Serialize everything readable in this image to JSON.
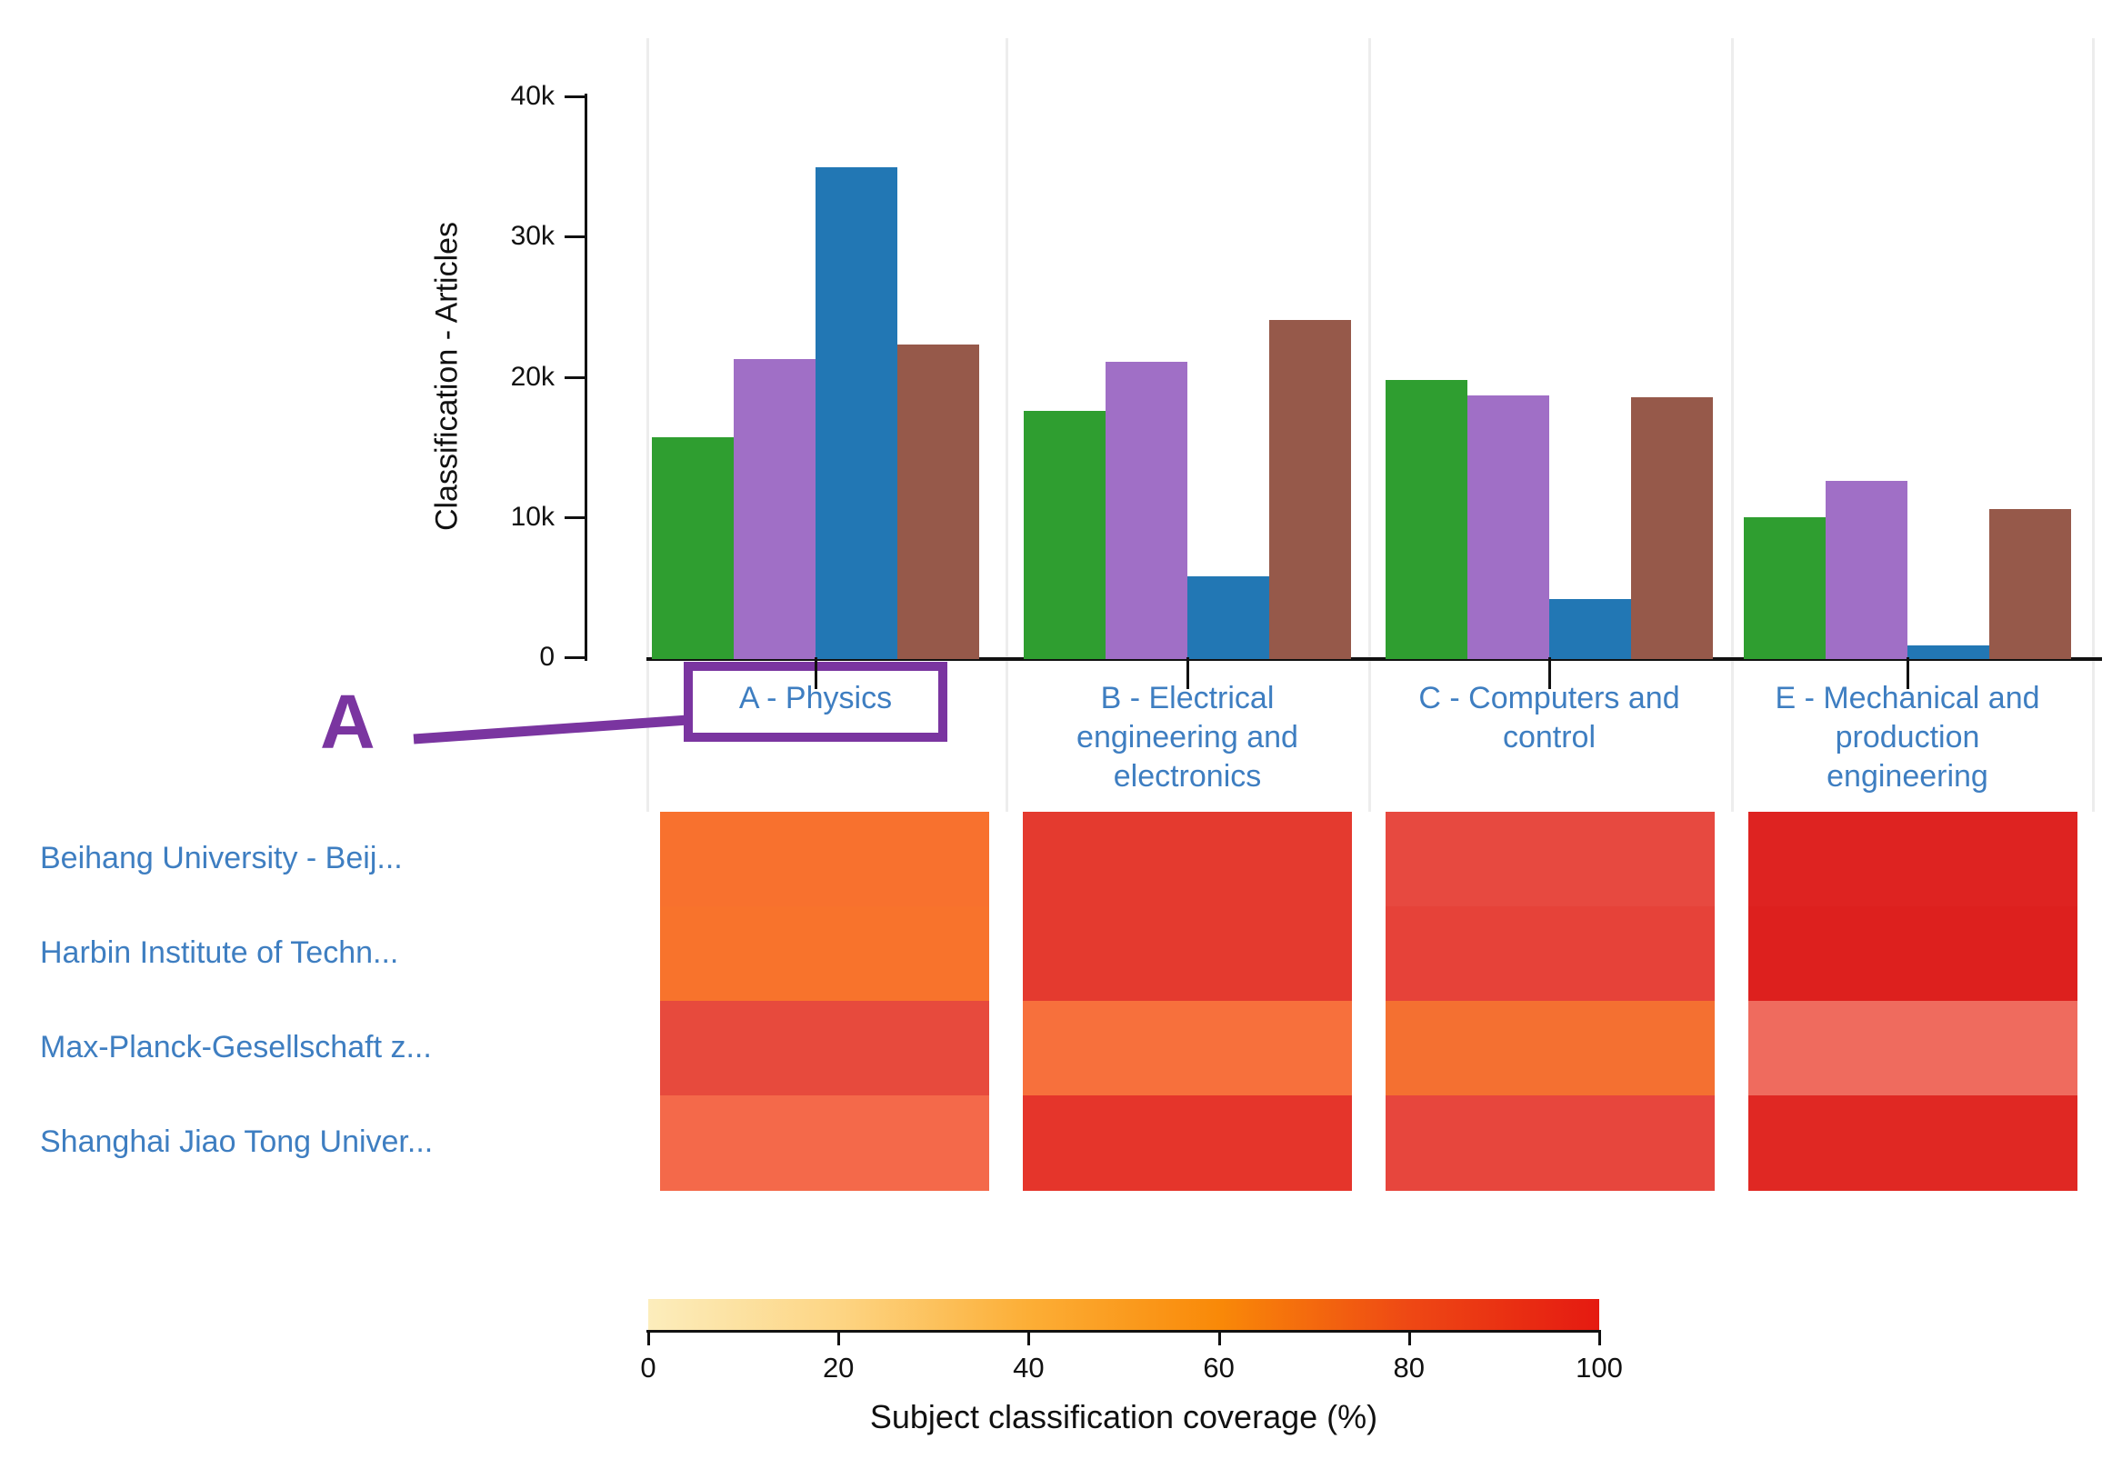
{
  "annotation": {
    "label": "A"
  },
  "chart_data": [
    {
      "type": "bar",
      "title": "",
      "xlabel": "",
      "ylabel": "Classification - Articles",
      "ylim": [
        0,
        40000
      ],
      "grid": "vertical-category-separators",
      "legend": "none",
      "y_tick_labels": [
        "0",
        "10k",
        "20k",
        "30k",
        "40k"
      ],
      "y_tick_values": [
        0,
        10000,
        20000,
        30000,
        40000
      ],
      "categories": [
        "A - Physics",
        "B - Electrical engineering and electronics",
        "C - Computers and control",
        "E - Mechanical and production engineering"
      ],
      "category_lines": [
        [
          "A - Physics"
        ],
        [
          "B - Electrical",
          "engineering and",
          "electronics"
        ],
        [
          "C - Computers and",
          "control"
        ],
        [
          "E - Mechanical and",
          "production",
          "engineering"
        ]
      ],
      "series": [
        {
          "name": "green",
          "color": "#2f9e30",
          "values": [
            15800,
            17700,
            19900,
            10100
          ]
        },
        {
          "name": "purple",
          "color": "#a06fc6",
          "values": [
            21400,
            21200,
            18800,
            12700
          ]
        },
        {
          "name": "blue",
          "color": "#2277b4",
          "values": [
            35100,
            5900,
            4300,
            1000
          ]
        },
        {
          "name": "brown",
          "color": "#96594a",
          "values": [
            22400,
            24200,
            18700,
            10700
          ]
        }
      ],
      "highlighted_category": "A - Physics",
      "annotation_label": "A",
      "highlight_color": "#7a35a0"
    },
    {
      "type": "heatmap",
      "rows": [
        "Beihang University - Beij...",
        "Harbin Institute of Techn...",
        "Max-Planck-Gesellschaft z...",
        "Shanghai Jiao Tong Univer..."
      ],
      "columns": [
        "A - Physics",
        "B - Electrical engineering and electronics",
        "C - Computers and control",
        "E - Mechanical and production engineering"
      ],
      "values_pct": [
        [
          70,
          88,
          85,
          96
        ],
        [
          70,
          88,
          86,
          96
        ],
        [
          83,
          70,
          70,
          76
        ],
        [
          76,
          89,
          85,
          94
        ]
      ],
      "cell_colors": [
        [
          "#f8712e",
          "#e43a2f",
          "#e74940",
          "#de2321"
        ],
        [
          "#f8732c",
          "#e43a2f",
          "#e64239",
          "#dd201e"
        ],
        [
          "#e74a3d",
          "#f7703c",
          "#f47031",
          "#ef6b5e"
        ],
        [
          "#f4694a",
          "#e5352b",
          "#e7463d",
          "#e02823"
        ]
      ],
      "colorbar": {
        "title": "Subject classification coverage (%)",
        "tick_labels": [
          "0",
          "20",
          "40",
          "60",
          "80",
          "100"
        ],
        "range": [
          0,
          100
        ],
        "gradient": [
          "#fcedbc",
          "#fdd584",
          "#fcae36",
          "#f98908",
          "#ee4814",
          "#e51a11"
        ]
      }
    }
  ]
}
